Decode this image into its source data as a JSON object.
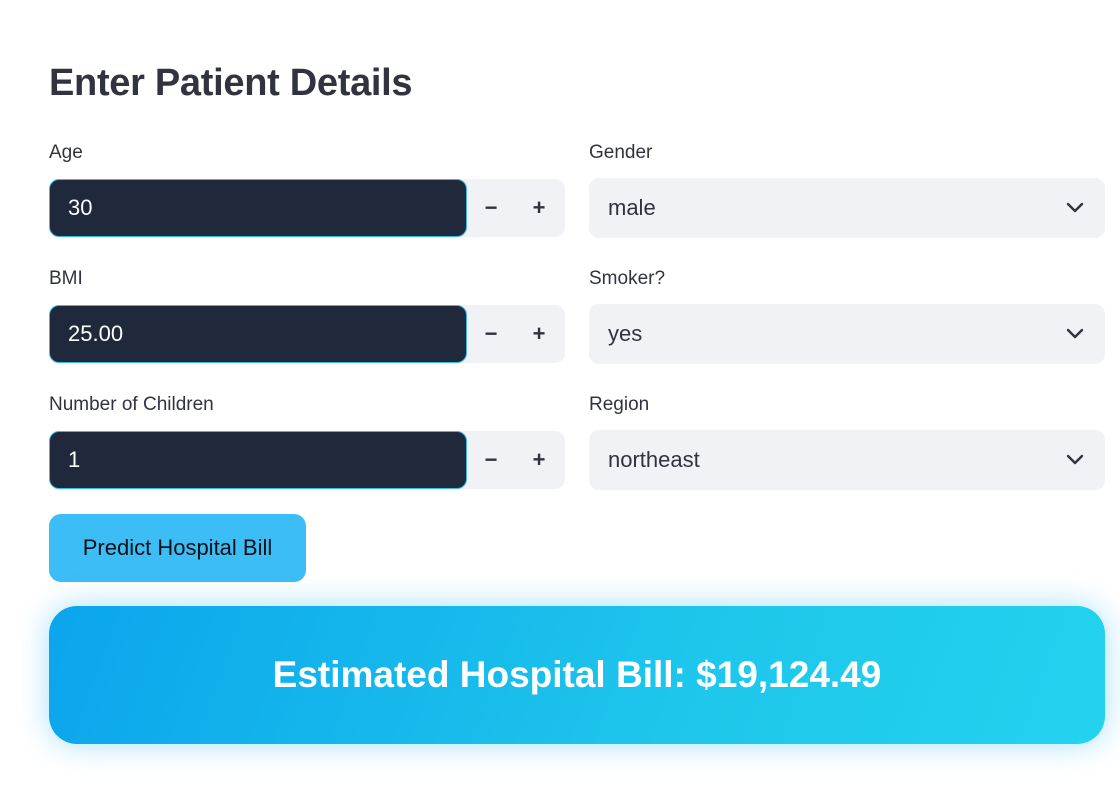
{
  "heading": "Enter Patient Details",
  "fields": {
    "age": {
      "label": "Age",
      "value": "30"
    },
    "bmi": {
      "label": "BMI",
      "value": "25.00"
    },
    "children": {
      "label": "Number of Children",
      "value": "1"
    },
    "gender": {
      "label": "Gender",
      "value": "male"
    },
    "smoker": {
      "label": "Smoker?",
      "value": "yes"
    },
    "region": {
      "label": "Region",
      "value": "northeast"
    }
  },
  "stepper": {
    "minus": "−",
    "plus": "+"
  },
  "predict_button": "Predict Hospital Bill",
  "result": "Estimated Hospital Bill: $19,124.49",
  "colors": {
    "input_bg": "#1f293b",
    "button_bg": "#3dbdf5",
    "result_gradient_start": "#0ba5ec",
    "result_gradient_end": "#22d3ee"
  },
  "icons": {
    "select_arrow": "chevron-down-icon"
  }
}
